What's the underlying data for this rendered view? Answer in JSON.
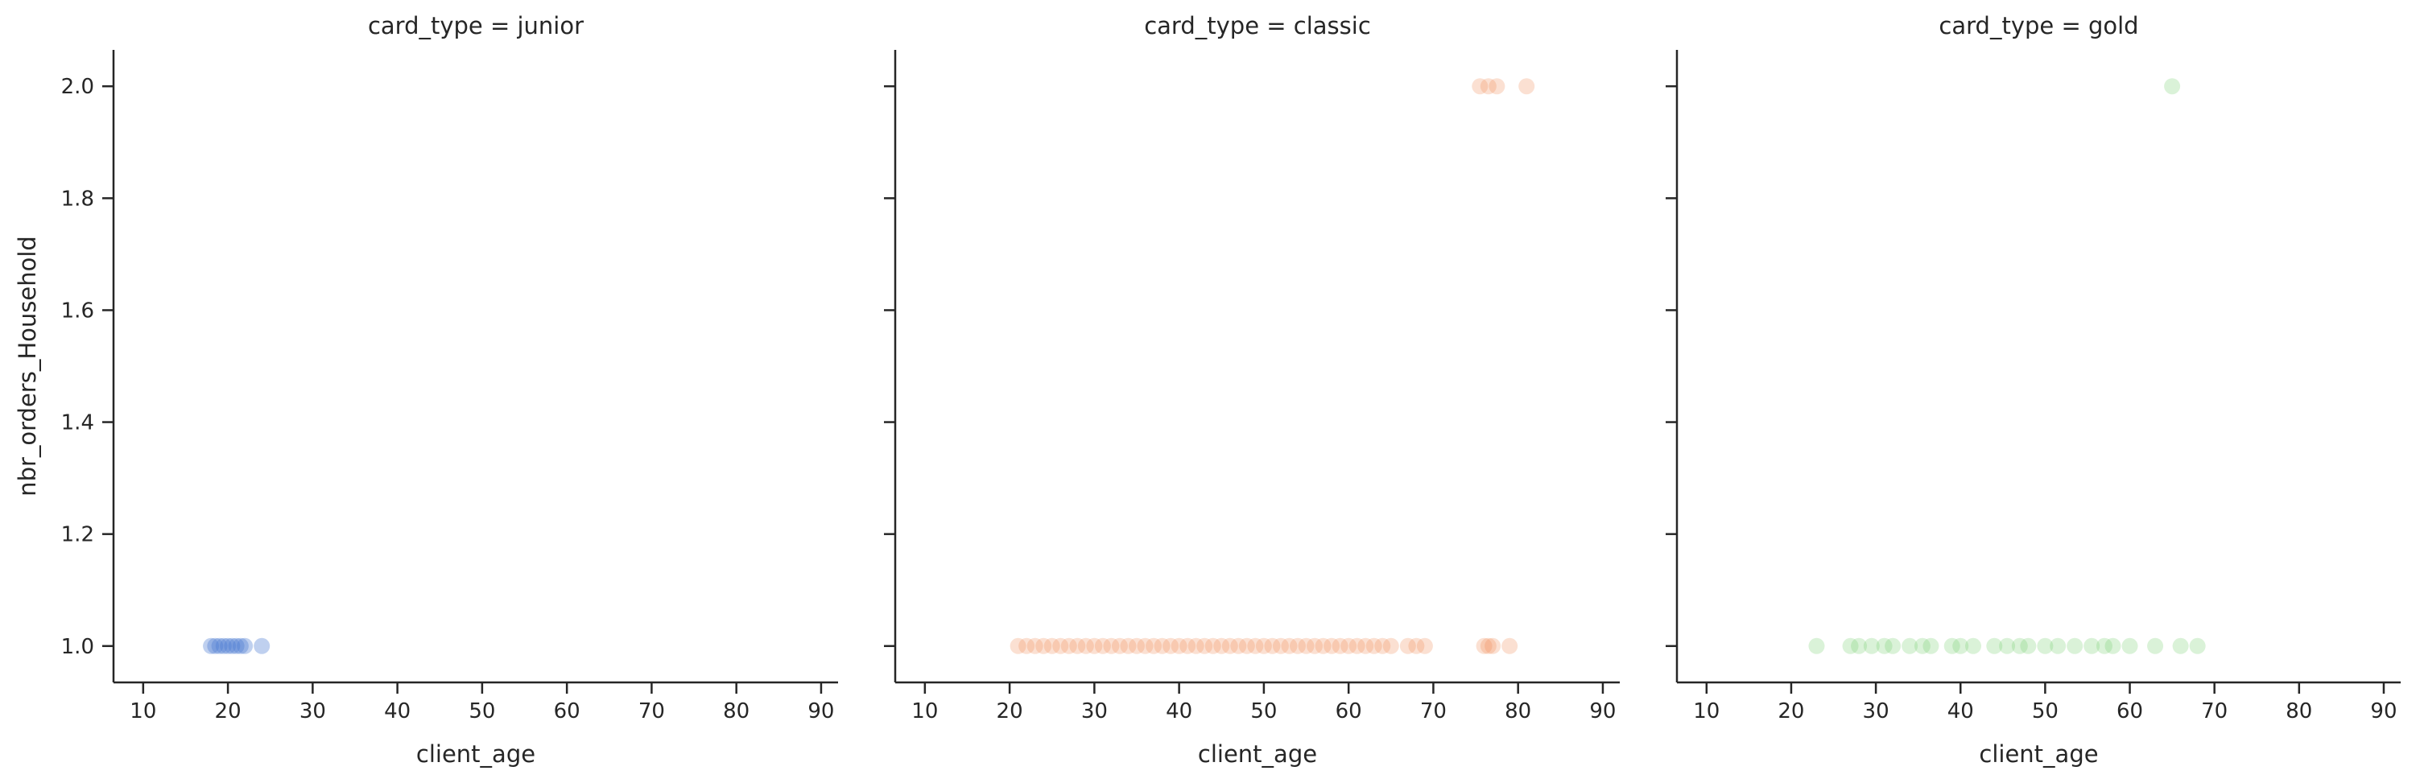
{
  "chart_data": {
    "type": "scatter",
    "facet_variable": "card_type",
    "x_label": "client_age",
    "y_label": "nbr_orders_Household",
    "xlim": [
      6.5,
      92
    ],
    "ylim": [
      0.935,
      2.065
    ],
    "x_ticks": [
      10,
      20,
      30,
      40,
      50,
      60,
      70,
      80,
      90
    ],
    "y_ticks": [
      1.0,
      1.2,
      1.4,
      1.6,
      1.8,
      2.0
    ],
    "grid": false,
    "legend": "none",
    "panels": [
      {
        "title": "card_type = junior",
        "color": "#4878d0",
        "opacity": 0.35,
        "points": [
          {
            "x": 18,
            "y": 1.0
          },
          {
            "x": 18.5,
            "y": 1.0
          },
          {
            "x": 19,
            "y": 1.0
          },
          {
            "x": 19.5,
            "y": 1.0
          },
          {
            "x": 20,
            "y": 1.0
          },
          {
            "x": 20.5,
            "y": 1.0
          },
          {
            "x": 21,
            "y": 1.0
          },
          {
            "x": 21.5,
            "y": 1.0
          },
          {
            "x": 22,
            "y": 1.0
          },
          {
            "x": 24,
            "y": 1.0
          }
        ]
      },
      {
        "title": "card_type = classic",
        "color": "#ee854a",
        "opacity": 0.25,
        "points": [
          {
            "x": 21,
            "y": 1.0
          },
          {
            "x": 22,
            "y": 1.0
          },
          {
            "x": 23,
            "y": 1.0
          },
          {
            "x": 24,
            "y": 1.0
          },
          {
            "x": 25,
            "y": 1.0
          },
          {
            "x": 26,
            "y": 1.0
          },
          {
            "x": 27,
            "y": 1.0
          },
          {
            "x": 28,
            "y": 1.0
          },
          {
            "x": 29,
            "y": 1.0
          },
          {
            "x": 30,
            "y": 1.0
          },
          {
            "x": 31,
            "y": 1.0
          },
          {
            "x": 32,
            "y": 1.0
          },
          {
            "x": 33,
            "y": 1.0
          },
          {
            "x": 34,
            "y": 1.0
          },
          {
            "x": 35,
            "y": 1.0
          },
          {
            "x": 36,
            "y": 1.0
          },
          {
            "x": 37,
            "y": 1.0
          },
          {
            "x": 38,
            "y": 1.0
          },
          {
            "x": 39,
            "y": 1.0
          },
          {
            "x": 40,
            "y": 1.0
          },
          {
            "x": 41,
            "y": 1.0
          },
          {
            "x": 42,
            "y": 1.0
          },
          {
            "x": 43,
            "y": 1.0
          },
          {
            "x": 44,
            "y": 1.0
          },
          {
            "x": 45,
            "y": 1.0
          },
          {
            "x": 46,
            "y": 1.0
          },
          {
            "x": 47,
            "y": 1.0
          },
          {
            "x": 48,
            "y": 1.0
          },
          {
            "x": 49,
            "y": 1.0
          },
          {
            "x": 50,
            "y": 1.0
          },
          {
            "x": 51,
            "y": 1.0
          },
          {
            "x": 52,
            "y": 1.0
          },
          {
            "x": 53,
            "y": 1.0
          },
          {
            "x": 54,
            "y": 1.0
          },
          {
            "x": 55,
            "y": 1.0
          },
          {
            "x": 56,
            "y": 1.0
          },
          {
            "x": 57,
            "y": 1.0
          },
          {
            "x": 58,
            "y": 1.0
          },
          {
            "x": 59,
            "y": 1.0
          },
          {
            "x": 60,
            "y": 1.0
          },
          {
            "x": 61,
            "y": 1.0
          },
          {
            "x": 62,
            "y": 1.0
          },
          {
            "x": 63,
            "y": 1.0
          },
          {
            "x": 64,
            "y": 1.0
          },
          {
            "x": 65,
            "y": 1.0
          },
          {
            "x": 67,
            "y": 1.0
          },
          {
            "x": 68,
            "y": 1.0
          },
          {
            "x": 69,
            "y": 1.0
          },
          {
            "x": 76,
            "y": 1.0
          },
          {
            "x": 76.5,
            "y": 1.0
          },
          {
            "x": 77,
            "y": 1.0
          },
          {
            "x": 79,
            "y": 1.0
          },
          {
            "x": 75.5,
            "y": 2.0
          },
          {
            "x": 76.5,
            "y": 2.0
          },
          {
            "x": 77.5,
            "y": 2.0
          },
          {
            "x": 81,
            "y": 2.0
          }
        ]
      },
      {
        "title": "card_type = gold",
        "color": "#6acc64",
        "opacity": 0.25,
        "points": [
          {
            "x": 23,
            "y": 1.0
          },
          {
            "x": 27,
            "y": 1.0
          },
          {
            "x": 28,
            "y": 1.0
          },
          {
            "x": 29.5,
            "y": 1.0
          },
          {
            "x": 31,
            "y": 1.0
          },
          {
            "x": 32,
            "y": 1.0
          },
          {
            "x": 34,
            "y": 1.0
          },
          {
            "x": 35.5,
            "y": 1.0
          },
          {
            "x": 36.5,
            "y": 1.0
          },
          {
            "x": 39,
            "y": 1.0
          },
          {
            "x": 40,
            "y": 1.0
          },
          {
            "x": 41.5,
            "y": 1.0
          },
          {
            "x": 44,
            "y": 1.0
          },
          {
            "x": 45.5,
            "y": 1.0
          },
          {
            "x": 47,
            "y": 1.0
          },
          {
            "x": 48,
            "y": 1.0
          },
          {
            "x": 50,
            "y": 1.0
          },
          {
            "x": 51.5,
            "y": 1.0
          },
          {
            "x": 53.5,
            "y": 1.0
          },
          {
            "x": 55.5,
            "y": 1.0
          },
          {
            "x": 57,
            "y": 1.0
          },
          {
            "x": 58,
            "y": 1.0
          },
          {
            "x": 60,
            "y": 1.0
          },
          {
            "x": 63,
            "y": 1.0
          },
          {
            "x": 66,
            "y": 1.0
          },
          {
            "x": 68,
            "y": 1.0
          },
          {
            "x": 65,
            "y": 2.0
          }
        ]
      }
    ]
  }
}
